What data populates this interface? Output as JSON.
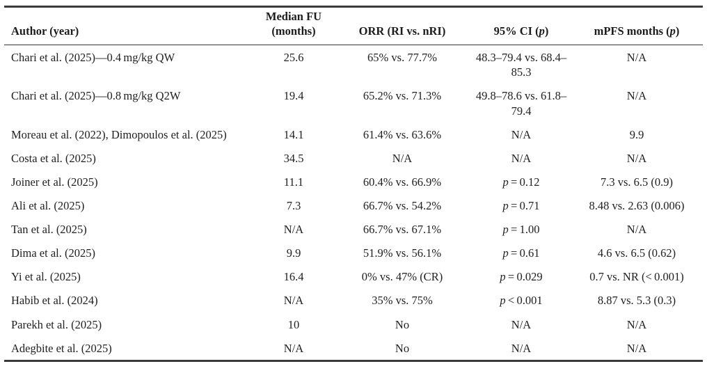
{
  "colors": {
    "rule": "#3a3a3a",
    "header_rule": "#333333",
    "text": "#212121",
    "background": "#ffffff"
  },
  "table": {
    "columns": [
      {
        "key": "author",
        "label": "Author (year)",
        "align": "left"
      },
      {
        "key": "median_fu",
        "label": "Median FU (months)",
        "align": "center"
      },
      {
        "key": "orr",
        "label": "ORR (RI vs. nRI)",
        "align": "center"
      },
      {
        "key": "ci",
        "label": "95% CI (p)",
        "align": "center"
      },
      {
        "key": "mpfs",
        "label": "mPFS months (p)",
        "align": "center"
      }
    ],
    "rows": [
      {
        "author": "Chari et al. (2025)—0.4 mg/kg QW",
        "median_fu": "25.6",
        "orr": "65% vs. 77.7%",
        "ci": "48.3–79.4 vs. 68.4–85.3",
        "mpfs": "N/A"
      },
      {
        "author": "Chari et al. (2025)—0.8 mg/kg Q2W",
        "median_fu": "19.4",
        "orr": "65.2% vs. 71.3%",
        "ci": "49.8–78.6 vs. 61.8–79.4",
        "mpfs": "N/A"
      },
      {
        "author": "Moreau et al. (2022), Dimopoulos et al. (2025)",
        "median_fu": "14.1",
        "orr": "61.4% vs. 63.6%",
        "ci": "N/A",
        "mpfs": "9.9"
      },
      {
        "author": "Costa et al. (2025)",
        "median_fu": "34.5",
        "orr": "N/A",
        "ci": "N/A",
        "mpfs": "N/A"
      },
      {
        "author": "Joiner et al. (2025)",
        "median_fu": "11.1",
        "orr": "60.4% vs. 66.9%",
        "ci": "p = 0.12",
        "mpfs": "7.3 vs. 6.5 (0.9)"
      },
      {
        "author": "Ali et al. (2025)",
        "median_fu": "7.3",
        "orr": "66.7% vs. 54.2%",
        "ci": "p = 0.71",
        "mpfs": "8.48 vs. 2.63 (0.006)"
      },
      {
        "author": "Tan et al. (2025)",
        "median_fu": "N/A",
        "orr": "66.7% vs. 67.1%",
        "ci": "p = 1.00",
        "mpfs": "N/A"
      },
      {
        "author": "Dima et al. (2025)",
        "median_fu": "9.9",
        "orr": "51.9% vs. 56.1%",
        "ci": "p = 0.61",
        "mpfs": "4.6 vs. 6.5 (0.62)"
      },
      {
        "author": "Yi et al. (2025)",
        "median_fu": "16.4",
        "orr": "0% vs. 47% (CR)",
        "ci": "p = 0.029",
        "mpfs": "0.7 vs. NR (< 0.001)"
      },
      {
        "author": "Habib et al. (2024)",
        "median_fu": "N/A",
        "orr": "35% vs. 75%",
        "ci": "p < 0.001",
        "mpfs": "8.87 vs. 5.3 (0.3)"
      },
      {
        "author": "Parekh et al. (2025)",
        "median_fu": "10",
        "orr": "No",
        "ci": "N/A",
        "mpfs": "N/A"
      },
      {
        "author": "Adegbite et al. (2025)",
        "median_fu": "N/A",
        "orr": "No",
        "ci": "N/A",
        "mpfs": "N/A"
      }
    ]
  }
}
